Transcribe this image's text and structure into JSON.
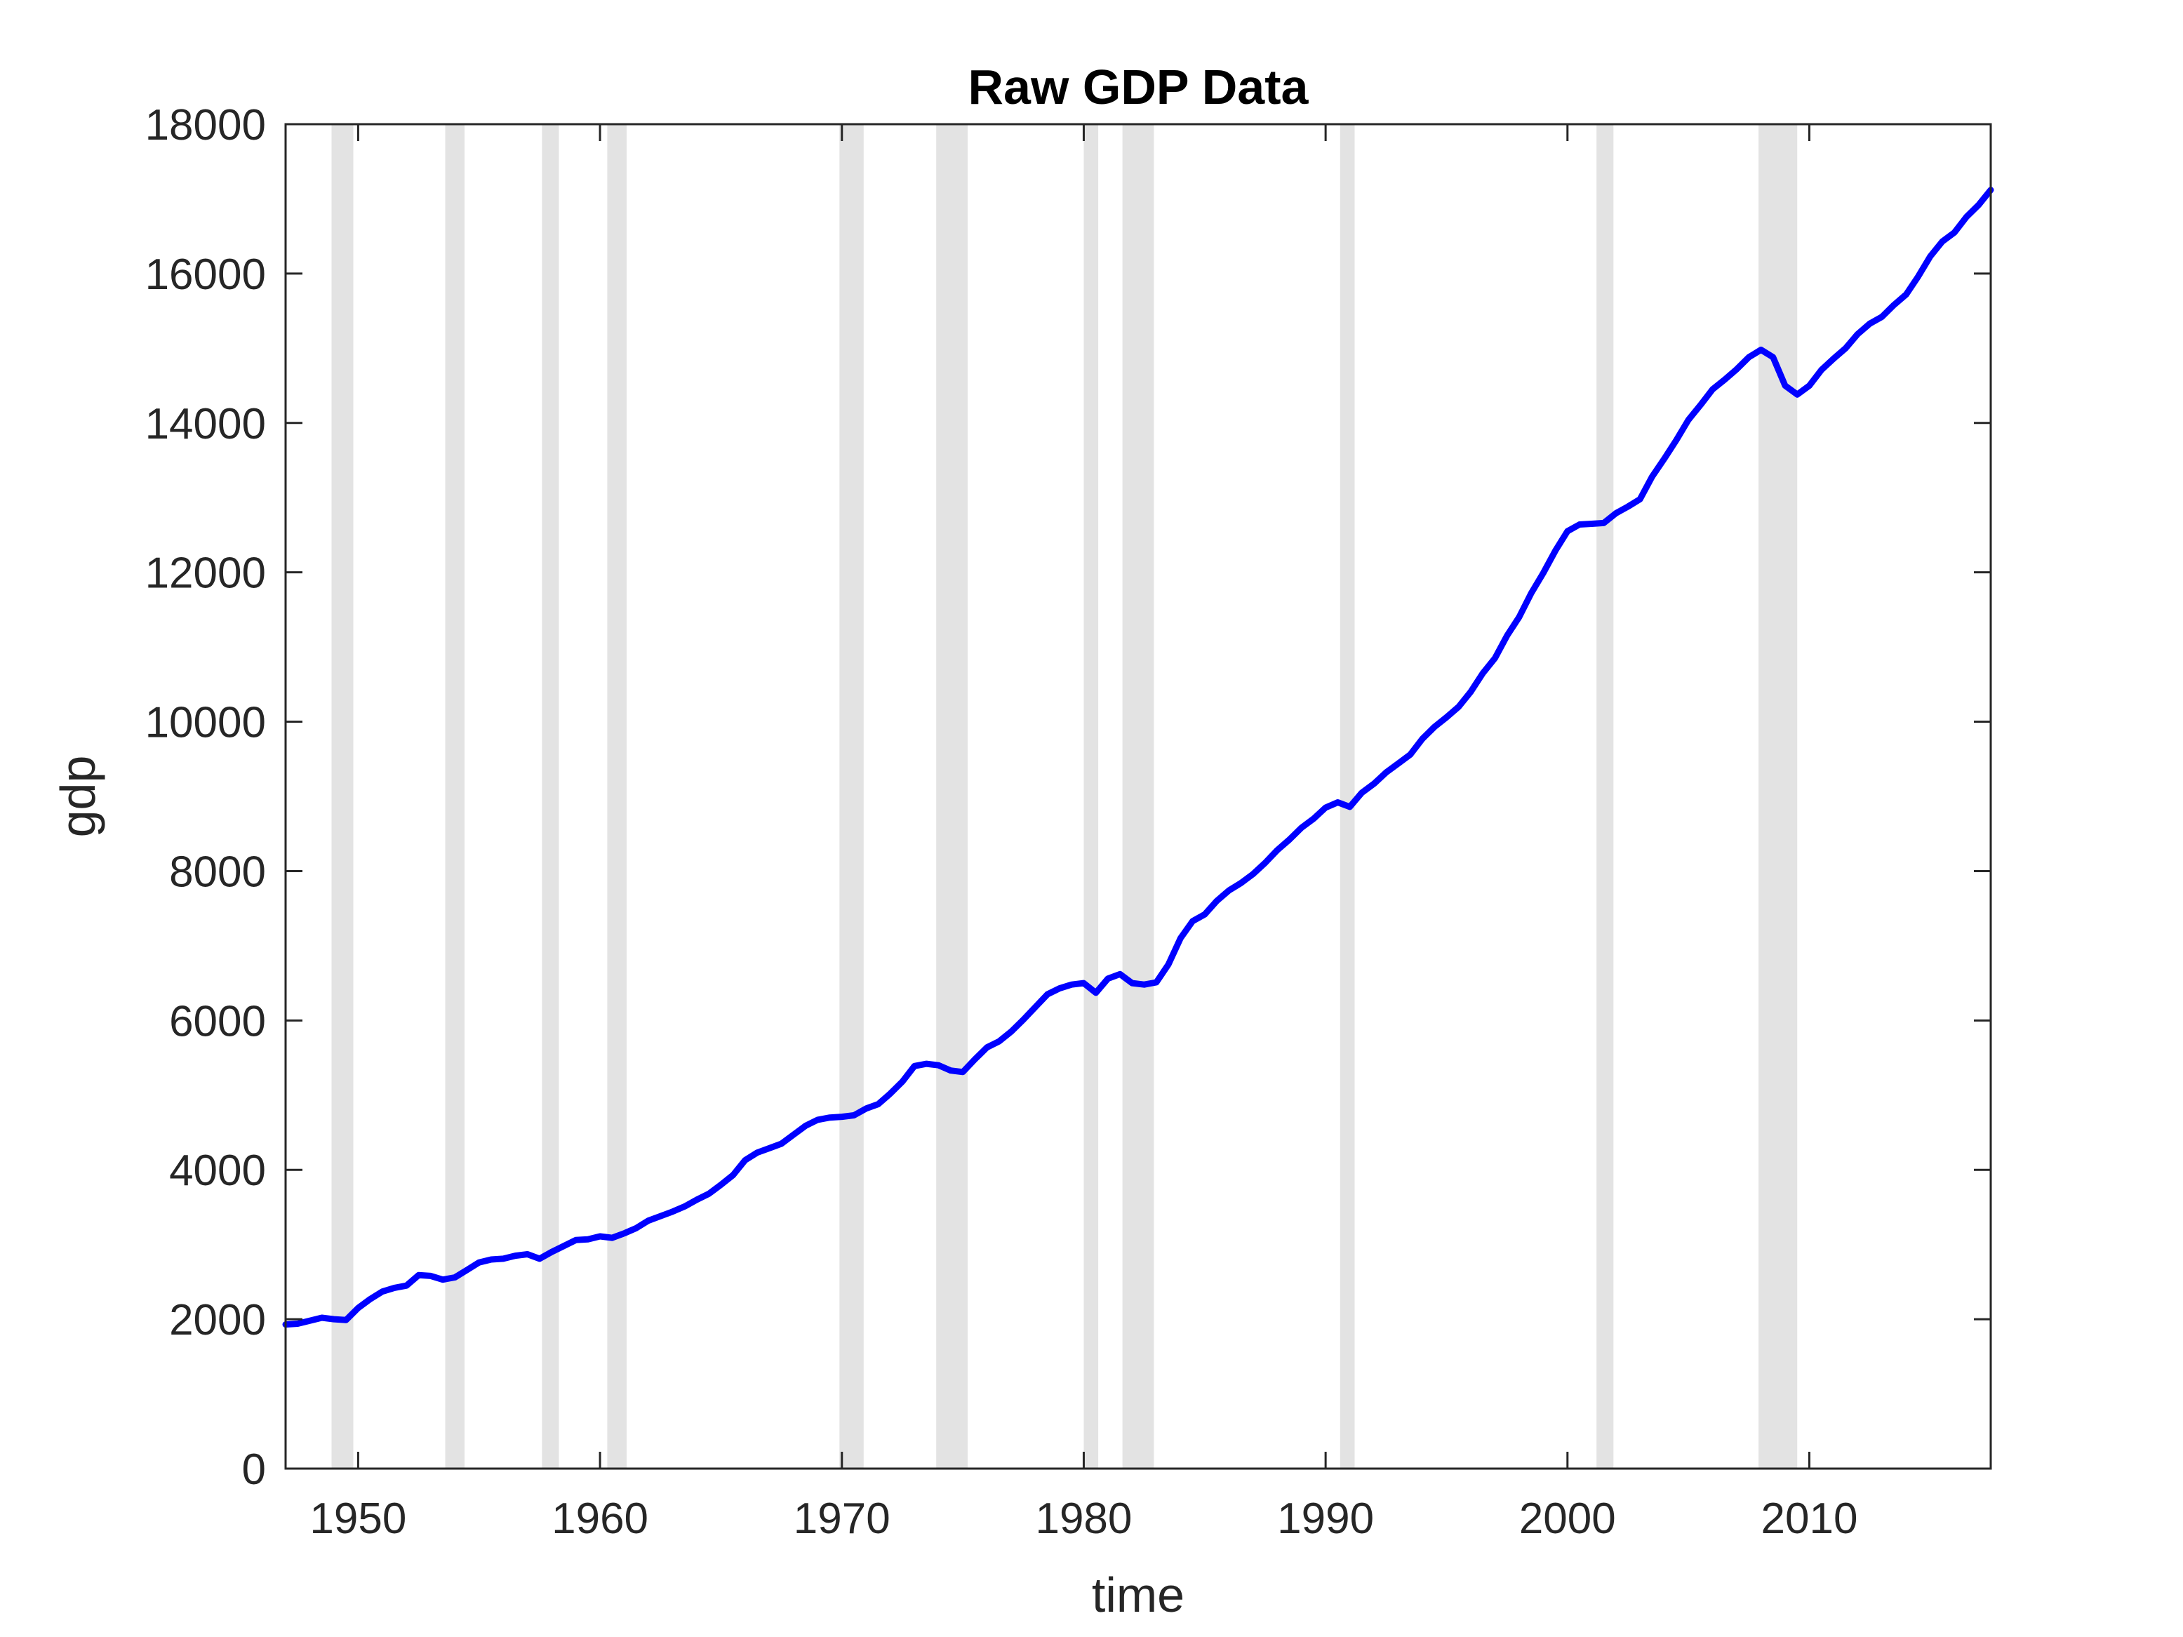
{
  "chart_data": {
    "type": "line",
    "title": "Raw GDP Data",
    "xlabel": "time",
    "ylabel": "gdp",
    "xlim": [
      1947,
      2017.5
    ],
    "ylim": [
      0,
      18000
    ],
    "x_ticks": [
      1950,
      1960,
      1970,
      1980,
      1990,
      2000,
      2010
    ],
    "y_ticks": [
      0,
      2000,
      4000,
      6000,
      8000,
      10000,
      12000,
      14000,
      16000,
      18000
    ],
    "grid": false,
    "legend": "none",
    "colors": {
      "line": "#0000ff",
      "shade": "#e3e3e3",
      "axis": "#262626"
    },
    "recession_bands": [
      [
        1948.9,
        1949.8
      ],
      [
        1953.6,
        1954.4
      ],
      [
        1957.6,
        1958.3
      ],
      [
        1960.3,
        1961.1
      ],
      [
        1969.9,
        1970.9
      ],
      [
        1973.9,
        1975.2
      ],
      [
        1980.0,
        1980.6
      ],
      [
        1981.6,
        1982.9
      ],
      [
        1990.6,
        1991.2
      ],
      [
        2001.2,
        2001.9
      ],
      [
        2007.9,
        2009.5
      ]
    ],
    "series": [
      {
        "x": [
          1947.0,
          1947.5,
          1948.0,
          1948.5,
          1949.0,
          1949.5,
          1950.0,
          1950.5,
          1951.0,
          1951.5,
          1952.0,
          1952.5,
          1953.0,
          1953.5,
          1954.0,
          1954.5,
          1955.0,
          1955.5,
          1956.0,
          1956.5,
          1957.0,
          1957.5,
          1958.0,
          1958.5,
          1959.0,
          1959.5,
          1960.0,
          1960.5,
          1961.0,
          1961.5,
          1962.0,
          1962.5,
          1963.0,
          1963.5,
          1964.0,
          1964.5,
          1965.0,
          1965.5,
          1966.0,
          1966.5,
          1967.0,
          1967.5,
          1968.0,
          1968.5,
          1969.0,
          1969.5,
          1970.0,
          1970.5,
          1971.0,
          1971.5,
          1972.0,
          1972.5,
          1973.0,
          1973.5,
          1974.0,
          1974.5,
          1975.0,
          1975.5,
          1976.0,
          1976.5,
          1977.0,
          1977.5,
          1978.0,
          1978.5,
          1979.0,
          1979.5,
          1980.0,
          1980.5,
          1981.0,
          1981.5,
          1982.0,
          1982.5,
          1983.0,
          1983.5,
          1984.0,
          1984.5,
          1985.0,
          1985.5,
          1986.0,
          1986.5,
          1987.0,
          1987.5,
          1988.0,
          1988.5,
          1989.0,
          1989.5,
          1990.0,
          1990.5,
          1991.0,
          1991.5,
          1992.0,
          1992.5,
          1993.0,
          1993.5,
          1994.0,
          1994.5,
          1995.0,
          1995.5,
          1996.0,
          1996.5,
          1997.0,
          1997.5,
          1998.0,
          1998.5,
          1999.0,
          1999.5,
          2000.0,
          2000.5,
          2001.0,
          2001.5,
          2002.0,
          2002.5,
          2003.0,
          2003.5,
          2004.0,
          2004.5,
          2005.0,
          2005.5,
          2006.0,
          2006.5,
          2007.0,
          2007.5,
          2008.0,
          2008.5,
          2009.0,
          2009.5,
          2010.0,
          2010.5,
          2011.0,
          2011.5,
          2012.0,
          2012.5,
          2013.0,
          2013.5,
          2014.0,
          2014.5,
          2015.0,
          2015.5,
          2016.0,
          2016.5,
          2017.0,
          2017.5
        ],
        "y": [
          1930,
          1940,
          1980,
          2020,
          2000,
          1990,
          2150,
          2270,
          2370,
          2420,
          2450,
          2590,
          2580,
          2530,
          2560,
          2660,
          2760,
          2800,
          2810,
          2850,
          2870,
          2810,
          2900,
          2980,
          3060,
          3070,
          3110,
          3090,
          3150,
          3220,
          3320,
          3380,
          3440,
          3510,
          3600,
          3680,
          3800,
          3930,
          4130,
          4230,
          4290,
          4350,
          4470,
          4590,
          4670,
          4700,
          4710,
          4730,
          4820,
          4880,
          5020,
          5180,
          5390,
          5420,
          5400,
          5330,
          5310,
          5480,
          5640,
          5720,
          5850,
          6010,
          6180,
          6350,
          6430,
          6480,
          6500,
          6370,
          6560,
          6620,
          6500,
          6480,
          6510,
          6750,
          7100,
          7330,
          7420,
          7600,
          7740,
          7840,
          7960,
          8110,
          8280,
          8420,
          8580,
          8700,
          8850,
          8920,
          8860,
          9050,
          9170,
          9320,
          9440,
          9560,
          9770,
          9930,
          10060,
          10200,
          10400,
          10650,
          10850,
          11150,
          11400,
          11720,
          11990,
          12290,
          12550,
          12640,
          12650,
          12660,
          12790,
          12880,
          12980,
          13280,
          13520,
          13770,
          14040,
          14240,
          14450,
          14580,
          14720,
          14880,
          14980,
          14880,
          14500,
          14380,
          14500,
          14710,
          14860,
          15000,
          15190,
          15330,
          15420,
          15580,
          15720,
          15960,
          16230,
          16430,
          16550,
          16760,
          16920,
          17120
        ]
      }
    ]
  }
}
